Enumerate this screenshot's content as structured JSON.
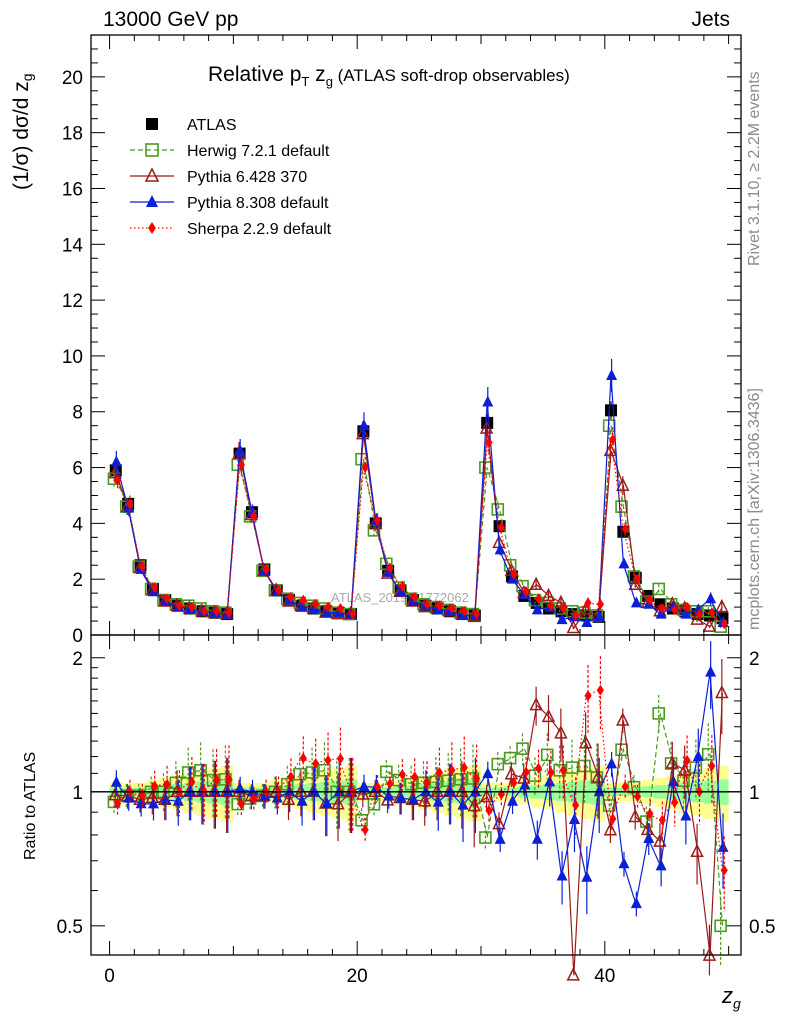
{
  "header": {
    "energy": "13000 GeV pp",
    "process": "Jets",
    "rivet": "Rivet 3.1.10, ≥ 2.2M events",
    "mcplots": "mcplots.cern.ch [arXiv:1306.3436]",
    "watermark": "ATLAS_2019_I1772062"
  },
  "chart_data": [
    {
      "type": "scatter",
      "panel": "main",
      "title": "Relative p_T z_g (ATLAS soft-drop observables)",
      "title_main": "Relative p",
      "title_sub": "T",
      "title_mid": " z",
      "title_sub2": "g",
      "title_tail": " (ATLAS soft-drop observables)",
      "ylabel": "(1/σ) dσ/d z",
      "ylabel_sub": "g",
      "xlabel": "z",
      "xlabel_sub": "g",
      "xlim": [
        -1.5,
        51
      ],
      "ylim": [
        0,
        21.5
      ],
      "yticks": [
        0,
        2,
        4,
        6,
        8,
        10,
        12,
        14,
        16,
        18,
        20
      ],
      "xticks": [
        0,
        20,
        40
      ],
      "legend_position": "top-left",
      "x": [
        0.5,
        1.5,
        2.5,
        3.5,
        4.5,
        5.5,
        6.5,
        7.5,
        8.5,
        9.5,
        10.5,
        11.5,
        12.5,
        13.5,
        14.5,
        15.5,
        16.5,
        17.5,
        18.5,
        19.5,
        20.5,
        21.5,
        22.5,
        23.5,
        24.5,
        25.5,
        26.5,
        27.5,
        28.5,
        29.5,
        30.5,
        31.5,
        32.5,
        33.5,
        34.5,
        35.5,
        36.5,
        37.5,
        38.5,
        39.5,
        40.5,
        41.5,
        42.5,
        43.5,
        44.5,
        45.5,
        46.5,
        47.5,
        48.5,
        49.5
      ],
      "series": [
        {
          "name": "ATLAS",
          "color": "#000000",
          "marker": "square",
          "values": [
            5.9,
            4.7,
            2.5,
            1.65,
            1.25,
            1.05,
            0.95,
            0.85,
            0.8,
            0.75,
            6.5,
            4.4,
            2.35,
            1.6,
            1.25,
            1.05,
            0.95,
            0.85,
            0.8,
            0.75,
            7.3,
            4.0,
            2.3,
            1.6,
            1.25,
            1.05,
            0.95,
            0.85,
            0.75,
            0.7,
            7.6,
            3.9,
            2.1,
            1.4,
            1.15,
            0.95,
            0.85,
            0.75,
            0.7,
            0.65,
            8.05,
            3.7,
            2.05,
            1.4,
            1.1,
            0.95,
            0.85,
            0.75,
            0.7,
            0.6
          ]
        },
        {
          "name": "Herwig 7.2.1 default",
          "color": "#4a9a1f",
          "marker": "open-square",
          "dash": "5,3",
          "values": [
            5.6,
            4.6,
            2.45,
            1.65,
            1.25,
            1.1,
            1.05,
            0.95,
            0.85,
            0.8,
            6.1,
            4.25,
            2.3,
            1.6,
            1.3,
            1.15,
            1.05,
            0.95,
            0.8,
            0.75,
            6.3,
            3.75,
            2.55,
            1.7,
            1.3,
            1.1,
            1.0,
            0.9,
            0.8,
            0.75,
            6.0,
            4.5,
            2.5,
            1.75,
            1.25,
            1.15,
            0.95,
            0.85,
            0.8,
            0.7,
            7.5,
            4.6,
            2.1,
            1.2,
            1.65,
            1.1,
            0.9,
            0.85,
            0.85,
            0.3
          ]
        },
        {
          "name": "Pythia 6.428 370",
          "color": "#9b1b1b",
          "marker": "open-triangle",
          "values": [
            5.8,
            4.6,
            2.4,
            1.6,
            1.2,
            1.05,
            0.95,
            0.85,
            0.8,
            0.75,
            6.5,
            4.3,
            2.3,
            1.6,
            1.2,
            1.05,
            0.95,
            0.8,
            0.75,
            0.75,
            7.2,
            4.0,
            2.2,
            1.55,
            1.2,
            1.0,
            0.95,
            0.85,
            0.75,
            0.65,
            7.4,
            3.3,
            2.3,
            1.5,
            1.8,
            1.4,
            1.15,
            0.25,
            0.9,
            0.7,
            6.6,
            5.35,
            1.8,
            1.15,
            0.85,
            1.1,
            0.95,
            0.55,
            0.3,
            1.0
          ]
        },
        {
          "name": "Pythia 8.308 default",
          "color": "#0b1fd6",
          "marker": "triangle",
          "values": [
            6.2,
            4.55,
            2.35,
            1.55,
            1.2,
            1.0,
            0.95,
            0.85,
            0.8,
            0.75,
            6.6,
            4.4,
            2.3,
            1.55,
            1.25,
            1.0,
            0.95,
            0.8,
            0.8,
            0.75,
            7.5,
            4.1,
            2.25,
            1.55,
            1.2,
            1.05,
            0.9,
            0.85,
            0.7,
            0.7,
            8.35,
            3.05,
            2.0,
            1.45,
            0.9,
            1.0,
            0.55,
            0.65,
            0.45,
            0.65,
            9.3,
            2.55,
            1.15,
            1.1,
            0.75,
            1.0,
            0.75,
            0.9,
            1.3,
            0.45
          ]
        },
        {
          "name": "Sherpa 2.2.9 default",
          "color": "#ff0000",
          "marker": "diamond",
          "dash": "1.5,2.5",
          "values": [
            5.55,
            4.7,
            2.45,
            1.7,
            1.3,
            1.05,
            1.0,
            0.85,
            0.85,
            0.8,
            6.1,
            4.25,
            2.35,
            1.6,
            1.35,
            1.25,
            1.1,
            1.0,
            0.95,
            0.75,
            6.0,
            4.1,
            2.4,
            1.75,
            1.35,
            1.1,
            1.05,
            0.95,
            0.85,
            0.75,
            6.9,
            3.85,
            2.2,
            1.55,
            1.3,
            1.05,
            0.95,
            0.7,
            1.15,
            1.1,
            7.0,
            3.8,
            2.0,
            1.25,
            0.95,
            0.9,
            1.0,
            0.75,
            0.8,
            0.4
          ]
        }
      ]
    },
    {
      "type": "scatter",
      "panel": "ratio",
      "ylabel": "Ratio to ATLAS",
      "ylim": [
        0.43,
        2.25
      ],
      "yticks": [
        0.5,
        1,
        2
      ],
      "ytick_labels": [
        "0.5",
        "1",
        "2"
      ],
      "note": "Ratio of each generator prediction to ATLAS data with yellow/green uncertainty band around 1"
    }
  ],
  "legend": [
    {
      "label": "ATLAS"
    },
    {
      "label": "Herwig 7.2.1 default"
    },
    {
      "label": "Pythia 6.428 370"
    },
    {
      "label": "Pythia 8.308 default"
    },
    {
      "label": "Sherpa 2.2.9 default"
    }
  ]
}
